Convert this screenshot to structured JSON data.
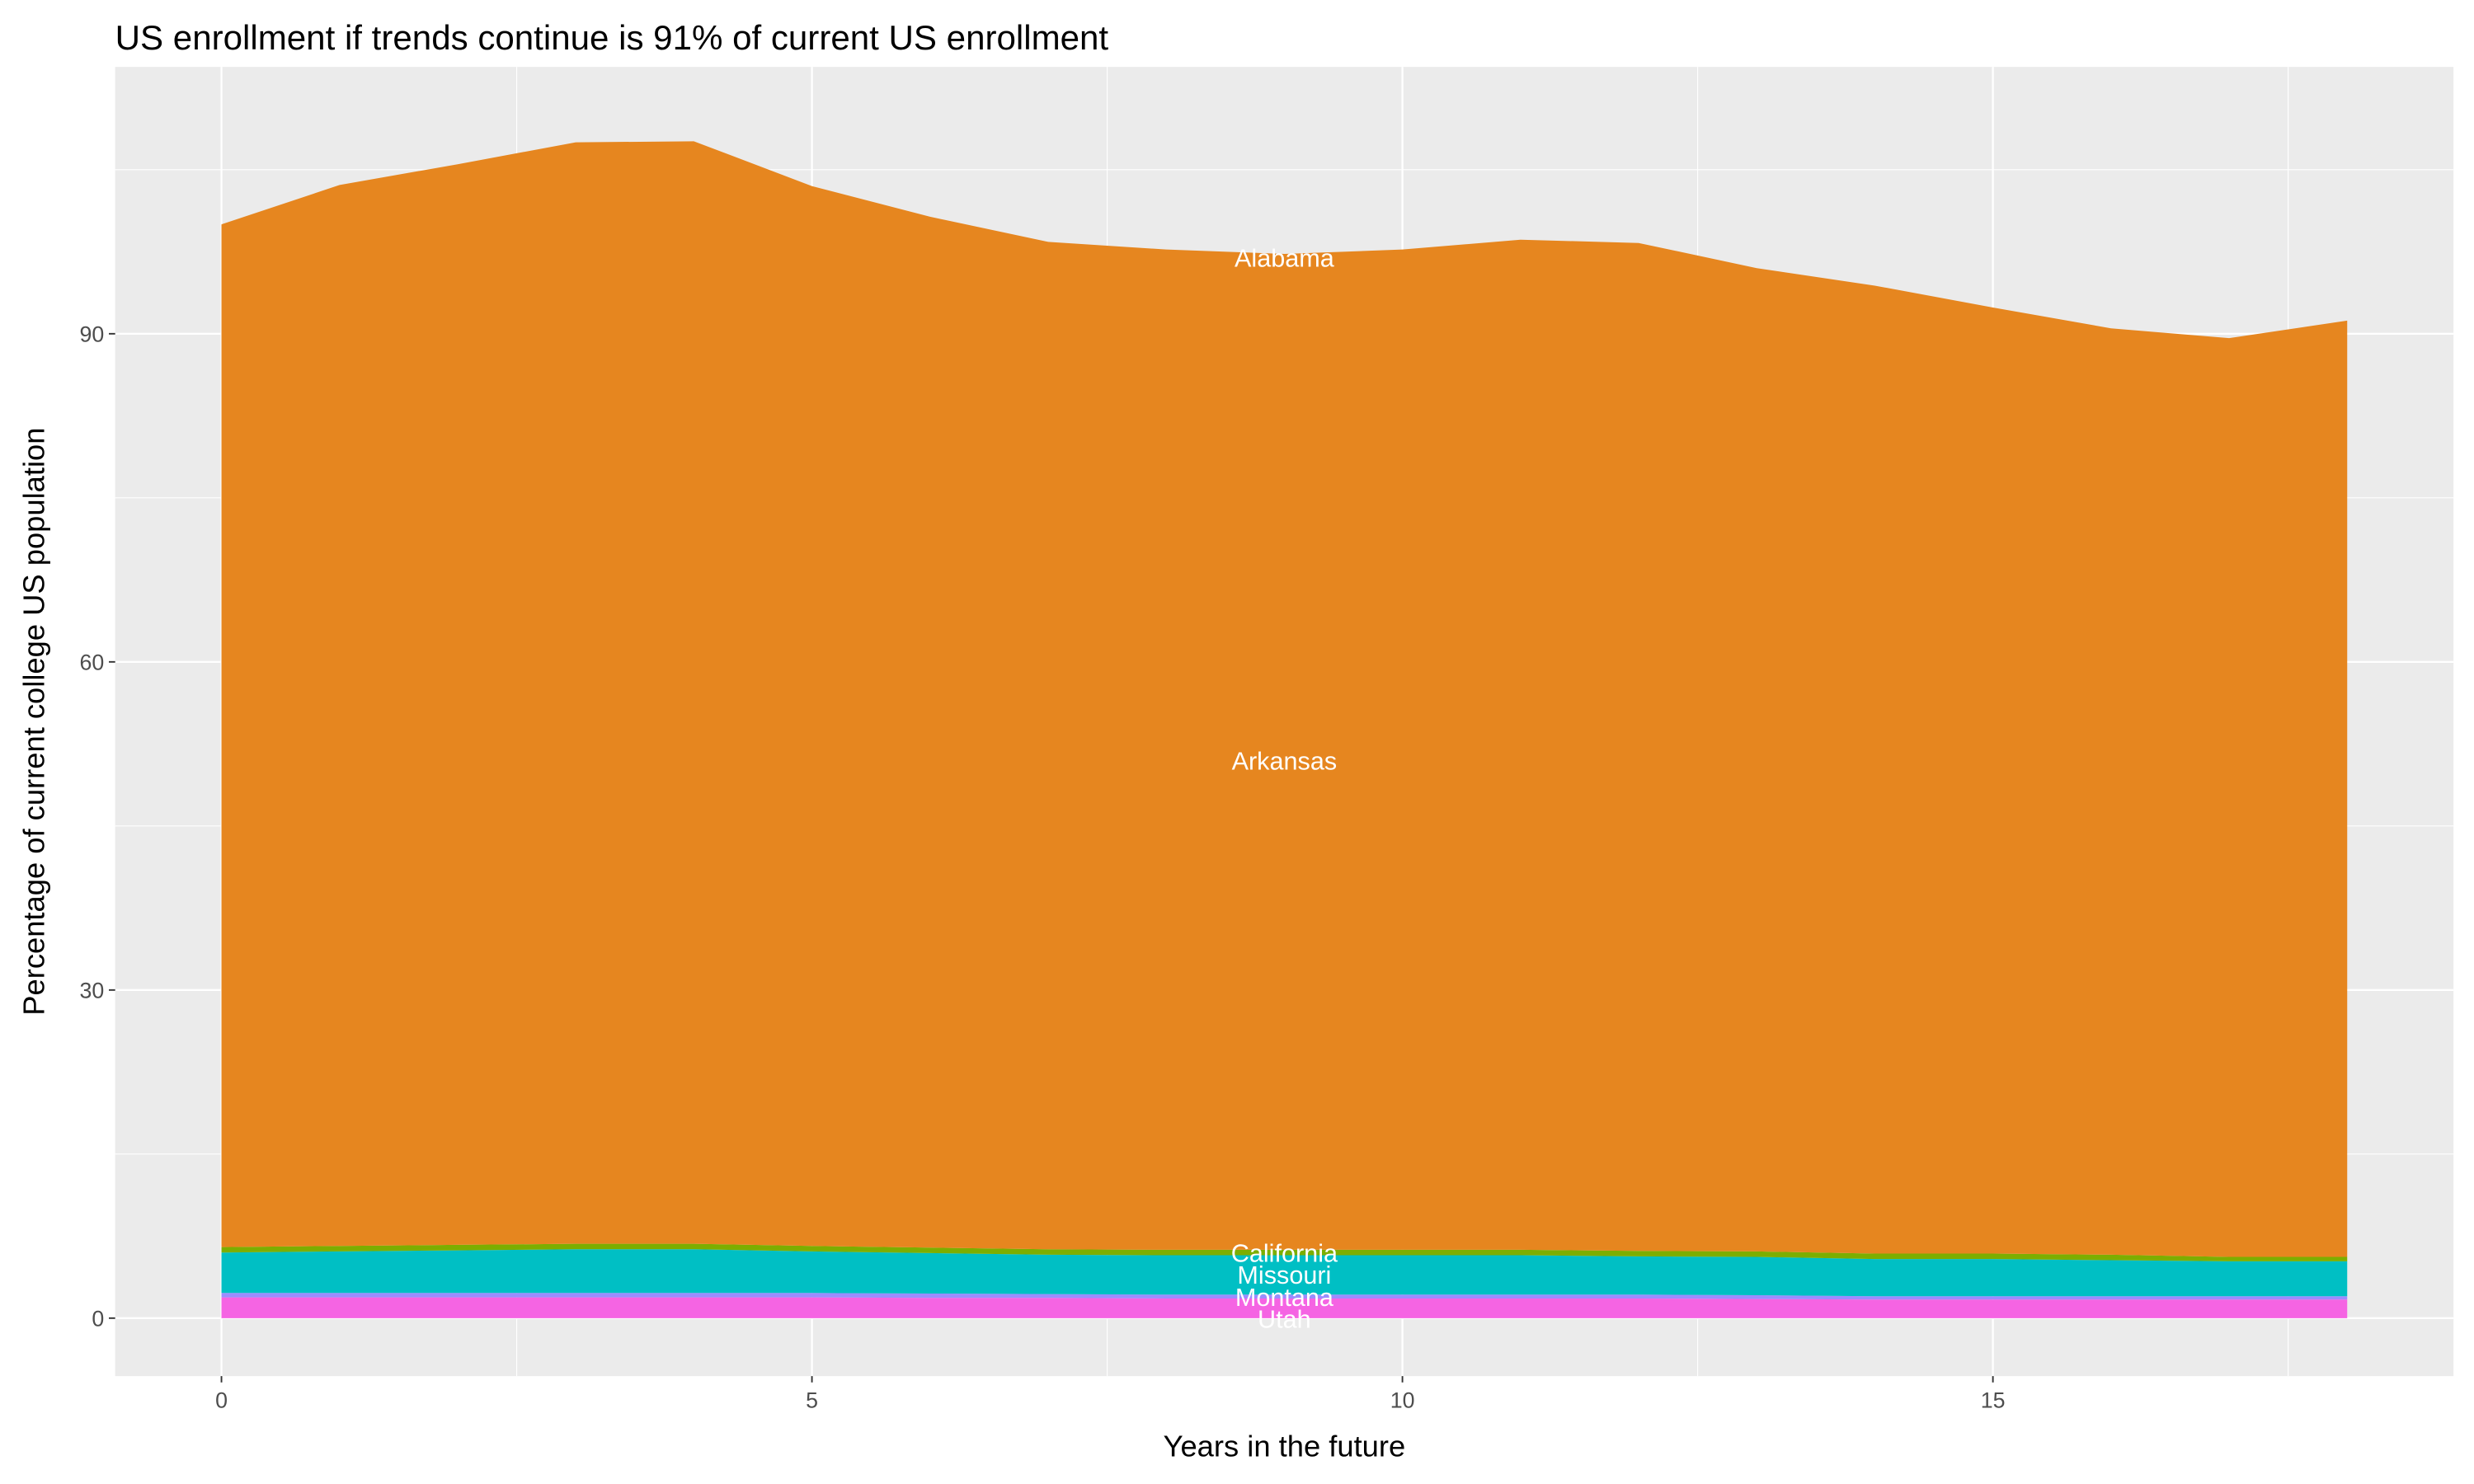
{
  "chart_data": {
    "type": "area",
    "stacked": true,
    "title": "US enrollment if trends continue is 91% of current US enrollment",
    "xlabel": "Years in the future",
    "ylabel": "Percentage of current college US population",
    "xlim": [
      -0.9,
      18.9
    ],
    "ylim": [
      -5.3,
      114.4
    ],
    "x_ticks": [
      0,
      5,
      10,
      15
    ],
    "y_ticks": [
      0,
      30,
      60,
      90
    ],
    "grid": true,
    "legend": "none",
    "x": [
      0,
      1,
      2,
      3,
      4,
      5,
      6,
      7,
      8,
      9,
      10,
      11,
      12,
      13,
      14,
      15,
      16,
      17,
      18
    ],
    "total": [
      100.0,
      103.6,
      105.5,
      107.5,
      107.6,
      103.5,
      100.7,
      98.4,
      97.7,
      97.3,
      97.7,
      98.6,
      98.3,
      96.0,
      94.4,
      92.4,
      90.5,
      89.6,
      91.2
    ],
    "series": [
      {
        "name": "Utah",
        "color": "#F564E3",
        "label_y": 0,
        "values": [
          1.9,
          1.9,
          1.9,
          1.9,
          1.9,
          1.9,
          1.85,
          1.85,
          1.8,
          1.8,
          1.8,
          1.8,
          1.8,
          1.75,
          1.7,
          1.7,
          1.7,
          1.7,
          1.7
        ]
      },
      {
        "name": "Montana",
        "color": "#9C8CFF",
        "label_y": 2,
        "values": [
          0.4,
          0.4,
          0.4,
          0.4,
          0.4,
          0.4,
          0.4,
          0.35,
          0.35,
          0.35,
          0.35,
          0.35,
          0.35,
          0.35,
          0.3,
          0.3,
          0.3,
          0.3,
          0.3
        ]
      },
      {
        "name": "Missouri",
        "color": "#00BFC4",
        "label_y": 4,
        "values": [
          3.7,
          3.8,
          3.9,
          4.0,
          4.0,
          3.8,
          3.7,
          3.6,
          3.6,
          3.6,
          3.6,
          3.6,
          3.5,
          3.5,
          3.4,
          3.4,
          3.3,
          3.2,
          3.2
        ]
      },
      {
        "name": "California",
        "color": "#7CAE00",
        "label_y": 6,
        "values": [
          0.5,
          0.5,
          0.5,
          0.5,
          0.5,
          0.5,
          0.5,
          0.5,
          0.5,
          0.5,
          0.5,
          0.5,
          0.5,
          0.5,
          0.5,
          0.5,
          0.5,
          0.4,
          0.4
        ]
      },
      {
        "name": "Arkansas",
        "color": "#E6861F",
        "label_y": 51,
        "values": null
      },
      {
        "name": "Alabama",
        "color": "#E6861F",
        "label_y": 97,
        "values": [
          0,
          0,
          0,
          0,
          0,
          0,
          0,
          0,
          0,
          0,
          0,
          0,
          0,
          0,
          0,
          0,
          0,
          0,
          0
        ]
      }
    ],
    "label_x": 9
  }
}
